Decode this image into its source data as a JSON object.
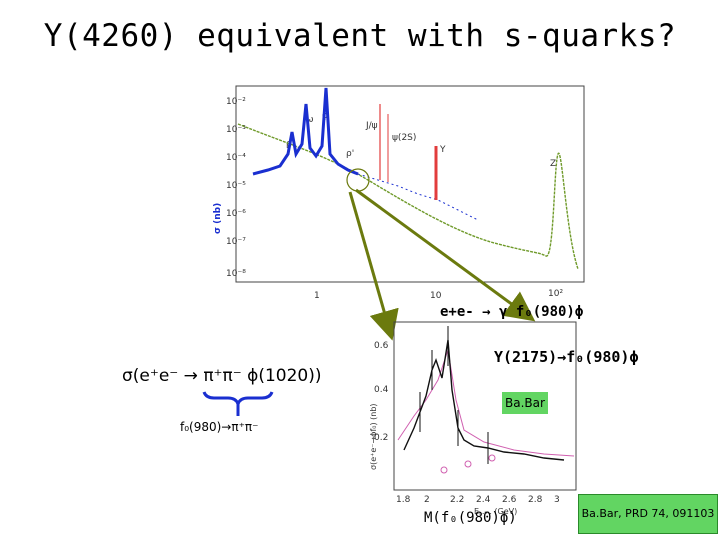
{
  "slide": {
    "title": "Y(4260) equivalent with s-quarks?",
    "formula_main": "σ(e⁺e⁻ → π⁺π⁻ ϕ(1020))",
    "formula_sub": "f₀(980)→π⁺π⁻",
    "process_label": "e+e-  → γ f₀(980)ϕ",
    "resonance_label": "Y(2175)→f₀(980)ϕ",
    "babar_badge": "Ba.Bar",
    "mass_axis_label": "M(f₀(980)ϕ)",
    "reference": "Ba.Bar, PRD 74, 091103"
  },
  "top_plot": {
    "y_axis_label": "σ (nb)",
    "y_ticks": [
      "10⁻²",
      "10⁻³",
      "10⁻⁴",
      "10⁻⁵",
      "10⁻⁶",
      "10⁻⁷",
      "10⁻⁸"
    ],
    "x_ticks": [
      "1",
      "10",
      "10²"
    ],
    "annotations": [
      "ω",
      "ϕ",
      "J/ψ",
      "ψ(2S)",
      "Υ",
      "Z",
      "ρ'",
      "ρ"
    ]
  },
  "bottom_plot": {
    "y_axis_label": "σ(e⁺e⁻→ϕf₀) (nb)",
    "y_ticks": [
      "0.6",
      "0.4",
      "0.2"
    ],
    "x_ticks": [
      "1.8",
      "2",
      "2.2",
      "2.4",
      "2.6",
      "2.8",
      "3"
    ],
    "x_axis_label": "E꜀.ₘ. (GeV)"
  },
  "colors": {
    "title_text": "#000000",
    "data_blue": "#1a2fd0",
    "fit_green": "#6f9a2a",
    "resonance_red": "#e23c3c",
    "arrow_olive": "#6b7a0e",
    "badge_green": "#62d562",
    "magenta_fit": "#d060b0"
  }
}
